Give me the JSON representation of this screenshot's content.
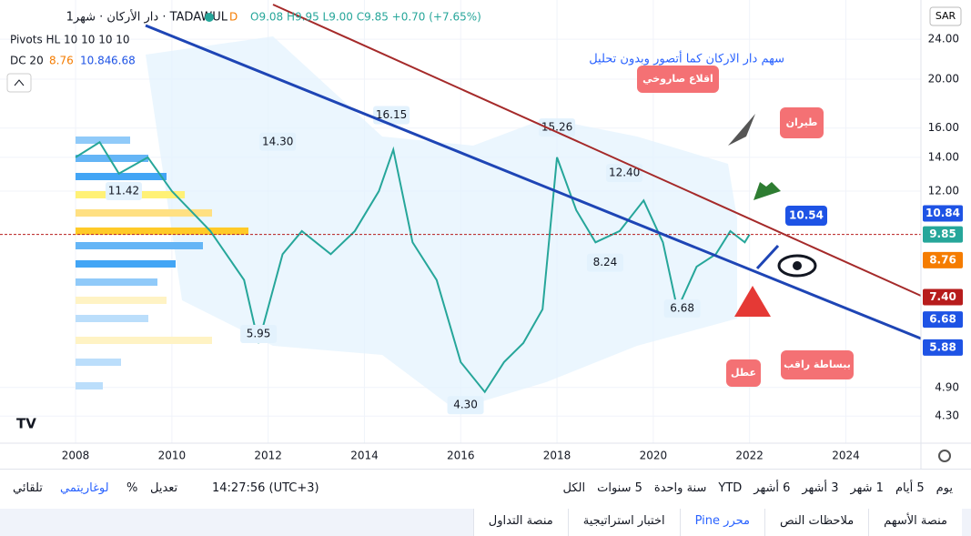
{
  "header": {
    "symbol": "دار الأركان · شهر1 · TADAWUL",
    "interval_badge": "D",
    "ohlc": "O9.08 H9.95 L9.00 C9.85 +0.70 (+7.65%)",
    "indicator1": "Pivots HL 10 10 10 10",
    "indicator2_name": "DC 20",
    "indicator2_values": [
      "8.76",
      "10.84",
      "6.68"
    ],
    "currency": "SAR"
  },
  "chart_data": {
    "type": "line",
    "log_scale": true,
    "color": "#26a69a",
    "x": [
      2008.0,
      2008.5,
      2008.9,
      2009.5,
      2010.0,
      2010.8,
      2011.5,
      2011.8,
      2012.3,
      2012.7,
      2013.3,
      2013.8,
      2014.3,
      2014.6,
      2015.0,
      2015.5,
      2016.0,
      2016.5,
      2016.9,
      2017.3,
      2017.7,
      2018.0,
      2018.4,
      2018.8,
      2019.3,
      2019.8,
      2020.2,
      2020.5,
      2020.9,
      2021.3,
      2021.6,
      2021.9,
      2022.0
    ],
    "values": [
      14,
      15,
      13,
      14,
      12,
      10,
      8,
      6,
      9,
      10,
      9,
      10,
      12,
      14.5,
      9.5,
      8,
      5.5,
      4.8,
      5.5,
      6,
      7,
      14,
      11,
      9.5,
      10,
      11.5,
      9.5,
      7,
      8.5,
      9,
      10,
      9.5,
      9.85
    ],
    "xlim": [
      2006.43,
      2025.56
    ],
    "xticks": [
      2008,
      2010,
      2012,
      2014,
      2016,
      2018,
      2020,
      2022,
      2024
    ],
    "ylim": [
      3.8,
      28.7
    ],
    "yticks": [
      {
        "value": 24,
        "label": "24.00"
      },
      {
        "value": 20,
        "label": "20.00"
      },
      {
        "value": 16,
        "label": "16.00"
      },
      {
        "value": 14,
        "label": "14.00"
      },
      {
        "value": 12,
        "label": "12.00"
      },
      {
        "value": 4.9,
        "label": "4.90"
      },
      {
        "value": 4.3,
        "label": "4.30"
      }
    ],
    "price_badges": [
      {
        "value": 10.84,
        "label": "10.84",
        "color": "#1e53e5"
      },
      {
        "value": 9.85,
        "label": "9.85",
        "color": "#26a69a"
      },
      {
        "value": 8.76,
        "label": "8.76",
        "color": "#f57c00"
      },
      {
        "value": 7.4,
        "label": "7.40",
        "color": "#b71c1c"
      },
      {
        "value": 6.68,
        "label": "6.68",
        "color": "#1e53e5"
      },
      {
        "value": 5.88,
        "label": "5.88",
        "color": "#1e53e5"
      }
    ],
    "pivot_labels": [
      {
        "x": 2014.56,
        "value": 16.15,
        "label": "16.15"
      },
      {
        "x": 2018.0,
        "value": 15.26,
        "label": "15.26"
      },
      {
        "x": 2012.2,
        "value": 14.3,
        "label": "14.30"
      },
      {
        "x": 2019.4,
        "value": 12.4,
        "label": "12.40"
      },
      {
        "x": 2009.0,
        "value": 11.42,
        "label": "11.42"
      },
      {
        "x": 2019.0,
        "value": 8.24,
        "label": "8.24"
      },
      {
        "x": 2020.6,
        "value": 6.68,
        "label": "6.68"
      },
      {
        "x": 2011.8,
        "value": 5.95,
        "label": "5.95"
      },
      {
        "x": 2016.1,
        "value": 4.3,
        "label": "4.30"
      }
    ]
  },
  "annotations": {
    "caption": "سهم دار الاركان كما أتصور وبدون تحليل",
    "rocket": "اقلاع صاروخي",
    "flight": "طيران",
    "target": "10.54",
    "fault": "عطل",
    "watch": "ببساطة راقب"
  },
  "toolbar": {
    "ranges": [
      "يوم",
      "5 أيام",
      "1 شهر",
      "3 أشهر",
      "6 أشهر",
      "YTD",
      "سنة واحدة",
      "5 سنوات",
      "الكل"
    ],
    "clock": "14:27:56 (UTC+3)",
    "adjust": "تعديل",
    "percent": "%",
    "log": "لوغاريتمي",
    "auto": "تلقائي"
  },
  "tabs": [
    "منصة الأسهم",
    "ملاحظات النص",
    "محرر Pine",
    "اختبار استراتيجية",
    "منصة التداول"
  ]
}
